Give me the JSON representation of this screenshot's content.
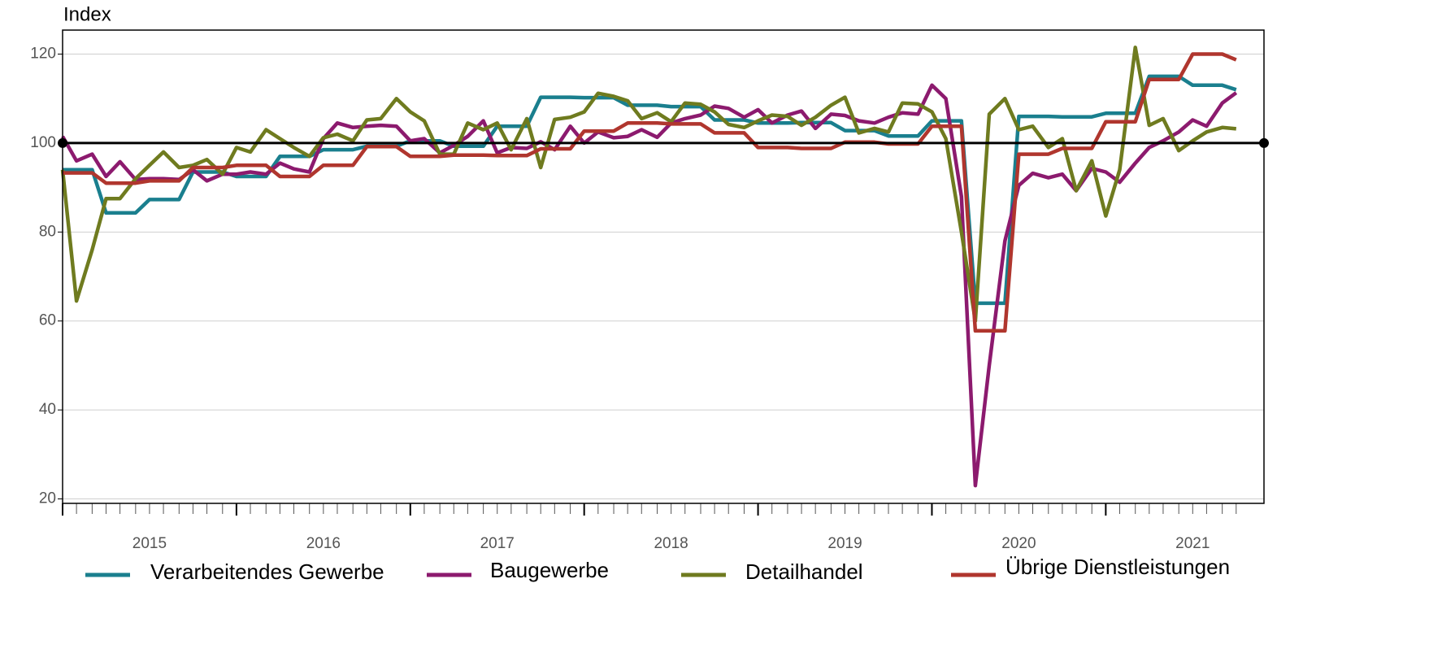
{
  "chart_data": {
    "type": "line",
    "ylabel": "Index",
    "x": [
      2015,
      2015.08,
      2015.17,
      2015.25,
      2015.33,
      2015.42,
      2015.5,
      2015.58,
      2015.67,
      2015.75,
      2015.83,
      2015.92,
      2016,
      2016.08,
      2016.17,
      2016.25,
      2016.33,
      2016.42,
      2016.5,
      2016.58,
      2016.67,
      2016.75,
      2016.83,
      2016.92,
      2017,
      2017.08,
      2017.17,
      2017.25,
      2017.33,
      2017.42,
      2017.5,
      2017.58,
      2017.67,
      2017.75,
      2017.83,
      2017.92,
      2018,
      2018.08,
      2018.17,
      2018.25,
      2018.33,
      2018.42,
      2018.5,
      2018.58,
      2018.67,
      2018.75,
      2018.83,
      2018.92,
      2019,
      2019.08,
      2019.17,
      2019.25,
      2019.33,
      2019.42,
      2019.5,
      2019.58,
      2019.67,
      2019.75,
      2019.83,
      2019.92,
      2020,
      2020.08,
      2020.17,
      2020.25,
      2020.33,
      2020.42,
      2020.5,
      2020.58,
      2020.67,
      2020.75,
      2020.83,
      2020.92,
      2021,
      2021.08,
      2021.17,
      2021.25,
      2021.33,
      2021.42,
      2021.5,
      2021.58,
      2021.67,
      2021.75
    ],
    "series": [
      {
        "name": "Verarbeitendes Gewerbe",
        "color": "#1a7f8e",
        "values": [
          94,
          94,
          94,
          84.3,
          84.3,
          84.3,
          87.3,
          87.3,
          87.3,
          93.5,
          93.5,
          93.5,
          92.5,
          92.5,
          92.5,
          97,
          97,
          97,
          98.5,
          98.5,
          98.5,
          99.3,
          99.3,
          99.3,
          100.5,
          100.5,
          100.5,
          99.3,
          99.3,
          99.3,
          103.8,
          103.8,
          103.8,
          110.3,
          110.3,
          110.3,
          110.2,
          110.2,
          110.2,
          108.5,
          108.5,
          108.5,
          108.2,
          108.2,
          108.2,
          105.2,
          105.2,
          105.2,
          104.5,
          104.5,
          104.5,
          104.6,
          104.6,
          104.6,
          102.8,
          102.8,
          102.8,
          101.6,
          101.6,
          101.6,
          105,
          105,
          105,
          64,
          64,
          64,
          106,
          106,
          106,
          105.9,
          105.9,
          105.9,
          106.7,
          106.7,
          106.7,
          115,
          115,
          115,
          113,
          113,
          113,
          112
        ]
      },
      {
        "name": "Baugewerbe",
        "color": "#8c1a6e",
        "values": [
          101.5,
          96,
          97.5,
          92.5,
          95.8,
          91.8,
          92,
          92,
          91.8,
          94,
          91.5,
          93,
          93,
          93.5,
          93,
          95.5,
          94.2,
          93.5,
          101,
          104.5,
          103.5,
          103.8,
          104,
          103.8,
          100.5,
          101,
          97.8,
          99.5,
          101.5,
          105,
          97.8,
          99,
          98.8,
          100.3,
          98.5,
          103.8,
          100,
          102.5,
          101.2,
          101.5,
          103,
          101.3,
          104.5,
          105.5,
          106.3,
          108.3,
          107.8,
          105.8,
          107.5,
          104.5,
          106.3,
          107.2,
          103.3,
          106.5,
          106.2,
          105,
          104.5,
          105.8,
          106.8,
          106.5,
          113,
          110,
          88,
          23,
          50,
          78,
          90.5,
          93.2,
          92.2,
          93,
          89.3,
          94.3,
          93.5,
          91.2,
          95.5,
          99,
          100.5,
          102.5,
          105.2,
          103.8,
          109,
          111.3
        ]
      },
      {
        "name": "Detailhandel",
        "color": "#6f7b1f",
        "values": [
          94,
          64.5,
          76,
          87.5,
          87.5,
          92,
          95,
          98,
          94.5,
          95,
          96.3,
          93,
          99,
          98,
          103,
          101,
          99,
          97,
          101.2,
          102,
          100.5,
          105.2,
          105.5,
          110,
          107,
          105,
          97.5,
          97.5,
          104.5,
          103,
          104.5,
          98.5,
          105.5,
          94.5,
          105.3,
          105.8,
          107,
          111.2,
          110.5,
          109.5,
          105.5,
          106.8,
          104.8,
          109,
          108.7,
          107,
          104.2,
          103.5,
          105,
          106.3,
          106,
          104,
          105.8,
          108.5,
          110.3,
          102.3,
          103.3,
          102.5,
          109,
          108.8,
          107,
          101,
          80,
          60,
          106.5,
          110,
          103,
          103.8,
          99,
          101,
          89.3,
          96,
          83.6,
          94,
          121.5,
          104,
          105.5,
          98.3,
          100.5,
          102.5,
          103.5,
          103.2
        ]
      },
      {
        "name": "Übrige Dienstleistungen",
        "color": "#b0362e",
        "values": [
          93.3,
          93.3,
          93.3,
          91,
          91,
          91,
          91.5,
          91.5,
          91.5,
          94.5,
          94.5,
          94.5,
          95,
          95,
          95,
          92.5,
          92.5,
          92.5,
          95,
          95,
          95,
          99.2,
          99.2,
          99.2,
          97,
          97,
          97,
          97.3,
          97.3,
          97.3,
          97.2,
          97.2,
          97.2,
          98.7,
          98.7,
          98.7,
          102.7,
          102.7,
          102.7,
          104.5,
          104.5,
          104.5,
          104.3,
          104.3,
          104.3,
          102.3,
          102.3,
          102.3,
          99,
          99,
          99,
          98.8,
          98.8,
          98.8,
          100.2,
          100.2,
          100.2,
          99.8,
          99.8,
          99.8,
          103.8,
          103.8,
          103.8,
          57.8,
          57.8,
          57.8,
          97.5,
          97.5,
          97.5,
          98.8,
          98.8,
          98.8,
          104.8,
          104.8,
          104.8,
          114.3,
          114.3,
          114.3,
          120,
          120,
          120,
          118.7
        ]
      }
    ],
    "xlim": [
      2015,
      2021.91
    ],
    "xticks": [
      2015,
      2016,
      2017,
      2018,
      2019,
      2020,
      2021
    ],
    "xtick_labels": [
      {
        "value": 2015.5,
        "label": "2015"
      },
      {
        "value": 2016.5,
        "label": "2016"
      },
      {
        "value": 2017.5,
        "label": "2017"
      },
      {
        "value": 2018.5,
        "label": "2018"
      },
      {
        "value": 2019.5,
        "label": "2019"
      },
      {
        "value": 2020.5,
        "label": "2020"
      },
      {
        "value": 2021.5,
        "label": "2021"
      }
    ],
    "ylim": [
      19,
      125.4
    ],
    "yticks": [
      20,
      40,
      60,
      80,
      100,
      120
    ],
    "reference_line": 100,
    "grid": true,
    "legend": "bottom"
  }
}
